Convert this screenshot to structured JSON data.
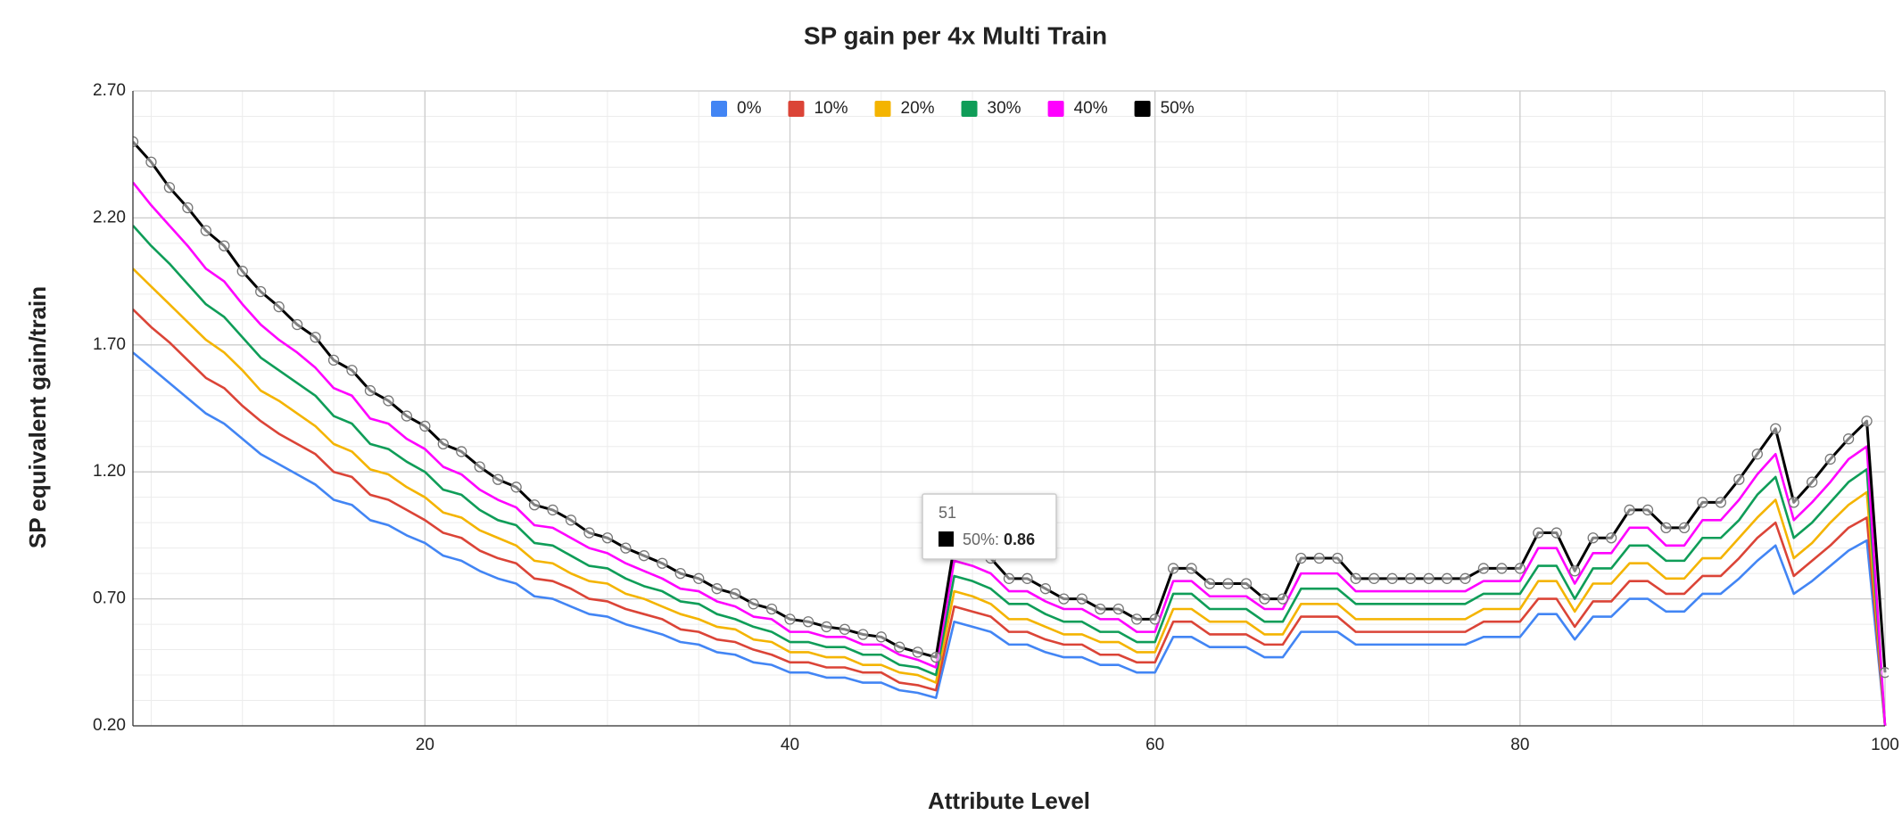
{
  "chart_data": {
    "type": "line",
    "title": "SP gain per 4x Multi Train",
    "xlabel": "Attribute Level",
    "ylabel": "SP equivalent gain/train",
    "x": [
      4,
      5,
      6,
      7,
      8,
      9,
      10,
      11,
      12,
      13,
      14,
      15,
      16,
      17,
      18,
      19,
      20,
      21,
      22,
      23,
      24,
      25,
      26,
      27,
      28,
      29,
      30,
      31,
      32,
      33,
      34,
      35,
      36,
      37,
      38,
      39,
      40,
      41,
      42,
      43,
      44,
      45,
      46,
      47,
      48,
      49,
      50,
      51,
      52,
      53,
      54,
      55,
      56,
      57,
      58,
      59,
      60,
      61,
      62,
      63,
      64,
      65,
      66,
      67,
      68,
      69,
      70,
      71,
      72,
      73,
      74,
      75,
      76,
      77,
      78,
      79,
      80,
      81,
      82,
      83,
      84,
      85,
      86,
      87,
      88,
      89,
      90,
      91,
      92,
      93,
      94,
      95,
      96,
      97,
      98,
      99,
      100
    ],
    "series": [
      {
        "name": "0%",
        "color": "#4285f4",
        "values": [
          1.67,
          1.61,
          1.55,
          1.49,
          1.43,
          1.39,
          1.33,
          1.27,
          1.23,
          1.19,
          1.15,
          1.09,
          1.07,
          1.01,
          0.99,
          0.95,
          0.92,
          0.87,
          0.85,
          0.81,
          0.78,
          0.76,
          0.71,
          0.7,
          0.67,
          0.64,
          0.63,
          0.6,
          0.58,
          0.56,
          0.53,
          0.52,
          0.49,
          0.48,
          0.45,
          0.44,
          0.41,
          0.41,
          0.39,
          0.39,
          0.37,
          0.37,
          0.34,
          0.33,
          0.31,
          0.61,
          0.59,
          0.57,
          0.52,
          0.52,
          0.49,
          0.47,
          0.47,
          0.44,
          0.44,
          0.41,
          0.41,
          0.55,
          0.55,
          0.51,
          0.51,
          0.51,
          0.47,
          0.47,
          0.57,
          0.57,
          0.57,
          0.52,
          0.52,
          0.52,
          0.52,
          0.52,
          0.52,
          0.52,
          0.55,
          0.55,
          0.55,
          0.64,
          0.64,
          0.54,
          0.63,
          0.63,
          0.7,
          0.7,
          0.65,
          0.65,
          0.72,
          0.72,
          0.78,
          0.85,
          0.91,
          0.72,
          0.77,
          0.83,
          0.89,
          0.93,
          0.2
        ]
      },
      {
        "name": "10%",
        "color": "#db4437",
        "values": [
          1.84,
          1.77,
          1.71,
          1.64,
          1.57,
          1.53,
          1.46,
          1.4,
          1.35,
          1.31,
          1.27,
          1.2,
          1.18,
          1.11,
          1.09,
          1.05,
          1.01,
          0.96,
          0.94,
          0.89,
          0.86,
          0.84,
          0.78,
          0.77,
          0.74,
          0.7,
          0.69,
          0.66,
          0.64,
          0.62,
          0.58,
          0.57,
          0.54,
          0.53,
          0.5,
          0.48,
          0.45,
          0.45,
          0.43,
          0.43,
          0.41,
          0.41,
          0.37,
          0.36,
          0.34,
          0.67,
          0.65,
          0.63,
          0.57,
          0.57,
          0.54,
          0.52,
          0.52,
          0.48,
          0.48,
          0.45,
          0.45,
          0.61,
          0.61,
          0.56,
          0.56,
          0.56,
          0.52,
          0.52,
          0.63,
          0.63,
          0.63,
          0.57,
          0.57,
          0.57,
          0.57,
          0.57,
          0.57,
          0.57,
          0.61,
          0.61,
          0.61,
          0.7,
          0.7,
          0.59,
          0.69,
          0.69,
          0.77,
          0.77,
          0.72,
          0.72,
          0.79,
          0.79,
          0.86,
          0.94,
          1.0,
          0.79,
          0.85,
          0.91,
          0.98,
          1.02,
          0.2
        ]
      },
      {
        "name": "20%",
        "color": "#f4b400",
        "values": [
          2.0,
          1.93,
          1.86,
          1.79,
          1.72,
          1.67,
          1.6,
          1.52,
          1.48,
          1.43,
          1.38,
          1.31,
          1.28,
          1.21,
          1.19,
          1.14,
          1.1,
          1.04,
          1.02,
          0.97,
          0.94,
          0.91,
          0.85,
          0.84,
          0.8,
          0.77,
          0.76,
          0.72,
          0.7,
          0.67,
          0.64,
          0.62,
          0.59,
          0.58,
          0.54,
          0.53,
          0.49,
          0.49,
          0.47,
          0.47,
          0.44,
          0.44,
          0.41,
          0.4,
          0.37,
          0.73,
          0.71,
          0.68,
          0.62,
          0.62,
          0.59,
          0.56,
          0.56,
          0.53,
          0.53,
          0.49,
          0.49,
          0.66,
          0.66,
          0.61,
          0.61,
          0.61,
          0.56,
          0.56,
          0.68,
          0.68,
          0.68,
          0.62,
          0.62,
          0.62,
          0.62,
          0.62,
          0.62,
          0.62,
          0.66,
          0.66,
          0.66,
          0.77,
          0.77,
          0.65,
          0.76,
          0.76,
          0.84,
          0.84,
          0.78,
          0.78,
          0.86,
          0.86,
          0.94,
          1.02,
          1.09,
          0.86,
          0.92,
          1.0,
          1.07,
          1.12,
          0.2
        ]
      },
      {
        "name": "30%",
        "color": "#0f9d58",
        "values": [
          2.17,
          2.09,
          2.02,
          1.94,
          1.86,
          1.81,
          1.73,
          1.65,
          1.6,
          1.55,
          1.5,
          1.42,
          1.39,
          1.31,
          1.29,
          1.24,
          1.2,
          1.13,
          1.11,
          1.05,
          1.01,
          0.99,
          0.92,
          0.91,
          0.87,
          0.83,
          0.82,
          0.78,
          0.75,
          0.73,
          0.69,
          0.68,
          0.64,
          0.62,
          0.59,
          0.57,
          0.53,
          0.53,
          0.51,
          0.51,
          0.48,
          0.48,
          0.44,
          0.43,
          0.4,
          0.79,
          0.77,
          0.74,
          0.68,
          0.68,
          0.64,
          0.61,
          0.61,
          0.57,
          0.57,
          0.53,
          0.53,
          0.72,
          0.72,
          0.66,
          0.66,
          0.66,
          0.61,
          0.61,
          0.74,
          0.74,
          0.74,
          0.68,
          0.68,
          0.68,
          0.68,
          0.68,
          0.68,
          0.68,
          0.72,
          0.72,
          0.72,
          0.83,
          0.83,
          0.7,
          0.82,
          0.82,
          0.91,
          0.91,
          0.85,
          0.85,
          0.94,
          0.94,
          1.01,
          1.11,
          1.18,
          0.94,
          1.0,
          1.08,
          1.16,
          1.21,
          0.2
        ]
      },
      {
        "name": "40%",
        "color": "#ff00ff",
        "values": [
          2.34,
          2.25,
          2.17,
          2.09,
          2.0,
          1.95,
          1.86,
          1.78,
          1.72,
          1.67,
          1.61,
          1.53,
          1.5,
          1.41,
          1.39,
          1.33,
          1.29,
          1.22,
          1.19,
          1.13,
          1.09,
          1.06,
          0.99,
          0.98,
          0.94,
          0.9,
          0.88,
          0.84,
          0.81,
          0.78,
          0.74,
          0.73,
          0.69,
          0.67,
          0.63,
          0.62,
          0.57,
          0.57,
          0.55,
          0.55,
          0.52,
          0.52,
          0.48,
          0.46,
          0.43,
          0.85,
          0.83,
          0.8,
          0.73,
          0.73,
          0.69,
          0.66,
          0.66,
          0.62,
          0.62,
          0.57,
          0.57,
          0.77,
          0.77,
          0.71,
          0.71,
          0.71,
          0.66,
          0.66,
          0.8,
          0.8,
          0.8,
          0.73,
          0.73,
          0.73,
          0.73,
          0.73,
          0.73,
          0.73,
          0.77,
          0.77,
          0.77,
          0.9,
          0.9,
          0.76,
          0.88,
          0.88,
          0.98,
          0.98,
          0.91,
          0.91,
          1.01,
          1.01,
          1.09,
          1.19,
          1.27,
          1.01,
          1.08,
          1.16,
          1.25,
          1.3,
          0.2
        ]
      },
      {
        "name": "50%",
        "color": "#000000",
        "markers": true,
        "values": [
          2.5,
          2.42,
          2.32,
          2.24,
          2.15,
          2.09,
          1.99,
          1.91,
          1.85,
          1.78,
          1.73,
          1.64,
          1.6,
          1.52,
          1.48,
          1.42,
          1.38,
          1.31,
          1.28,
          1.22,
          1.17,
          1.14,
          1.07,
          1.05,
          1.01,
          0.96,
          0.94,
          0.9,
          0.87,
          0.84,
          0.8,
          0.78,
          0.74,
          0.72,
          0.68,
          0.66,
          0.62,
          0.61,
          0.59,
          0.58,
          0.56,
          0.55,
          0.51,
          0.49,
          0.47,
          0.91,
          0.88,
          0.86,
          0.78,
          0.78,
          0.74,
          0.7,
          0.7,
          0.66,
          0.66,
          0.62,
          0.62,
          0.82,
          0.82,
          0.76,
          0.76,
          0.76,
          0.7,
          0.7,
          0.86,
          0.86,
          0.86,
          0.78,
          0.78,
          0.78,
          0.78,
          0.78,
          0.78,
          0.78,
          0.82,
          0.82,
          0.82,
          0.96,
          0.96,
          0.81,
          0.94,
          0.94,
          1.05,
          1.05,
          0.98,
          0.98,
          1.08,
          1.08,
          1.17,
          1.27,
          1.37,
          1.08,
          1.16,
          1.25,
          1.33,
          1.4,
          0.41
        ]
      }
    ],
    "xlim": [
      4,
      100
    ],
    "xticks": [
      20,
      40,
      60,
      80,
      100
    ],
    "ylim": [
      0.2,
      2.7
    ],
    "yticks": [
      {
        "value": 0.2,
        "label": "0.20"
      },
      {
        "value": 0.7,
        "label": "0.70"
      },
      {
        "value": 1.2,
        "label": "1.20"
      },
      {
        "value": 1.7,
        "label": "1.70"
      },
      {
        "value": 2.2,
        "label": "2.20"
      },
      {
        "value": 2.7,
        "label": "2.70"
      }
    ],
    "grid": true,
    "legend": "top"
  }
}
